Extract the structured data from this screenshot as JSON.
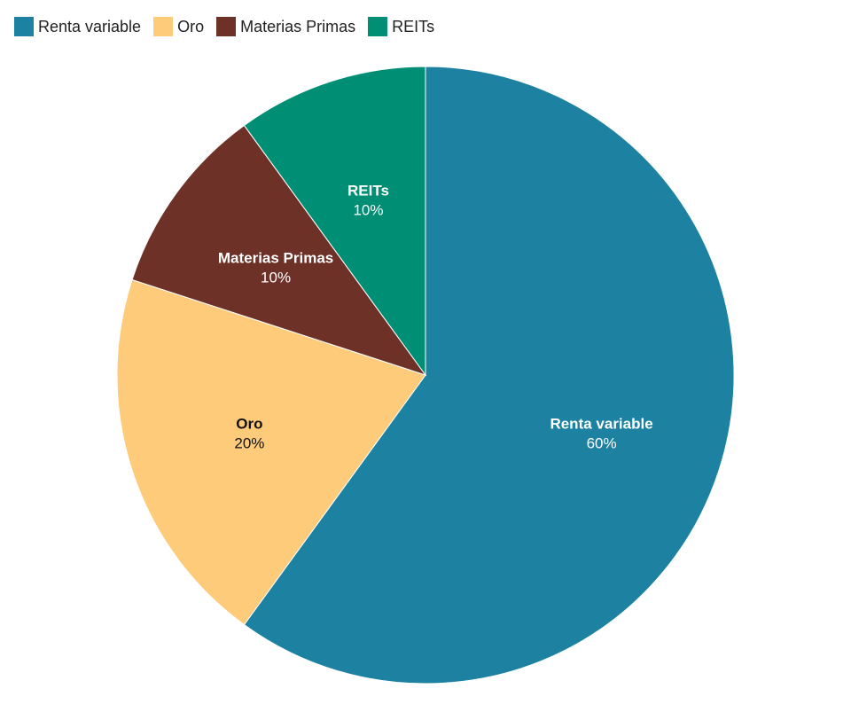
{
  "chart_data": {
    "type": "pie",
    "title": "",
    "legend_position": "top-left",
    "slices": [
      {
        "name": "Renta variable",
        "value": 60,
        "label": "60%",
        "color": "#1d81a2",
        "label_color": "#ffffff"
      },
      {
        "name": "Oro",
        "value": 20,
        "label": "20%",
        "color": "#fdcb7a",
        "label_color": "#111111"
      },
      {
        "name": "Materias Primas",
        "value": 10,
        "label": "10%",
        "color": "#6e3127",
        "label_color": "#ffffff"
      },
      {
        "name": "REITs",
        "value": 10,
        "label": "10%",
        "color": "#008f74",
        "label_color": "#ffffff"
      }
    ]
  }
}
